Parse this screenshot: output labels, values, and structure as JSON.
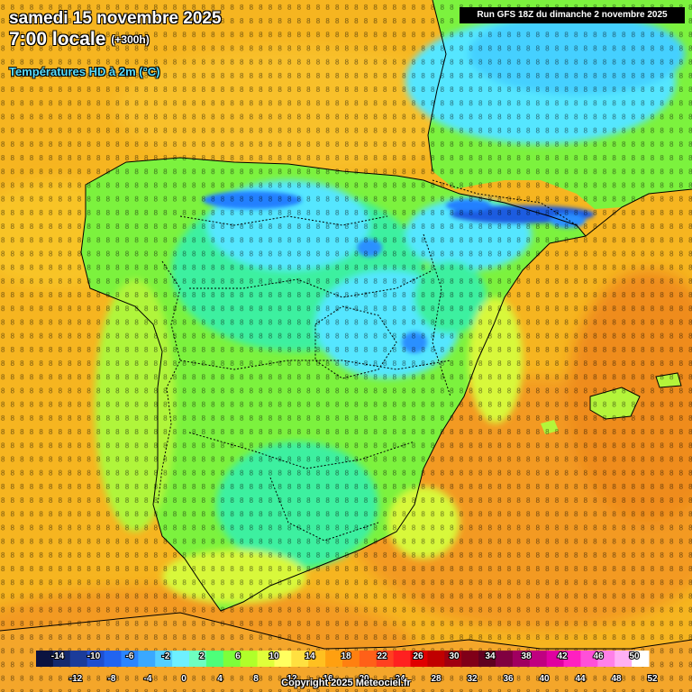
{
  "header": {
    "date_line": "samedi 15 novembre 2025",
    "time_line": "7:00 locale",
    "lead": "(+300h)",
    "variable": "Températures HD à 2m (°C)"
  },
  "run_info": "Run GFS 18Z du dimanche 2 novembre 2025",
  "copyright": "Copyright 2025 Meteociel.fr",
  "legend": {
    "upper_ticks": [
      "-14",
      "-10",
      "-6",
      "-2",
      "2",
      "6",
      "10",
      "14",
      "18",
      "22",
      "26",
      "30",
      "34",
      "38",
      "42",
      "46",
      "50"
    ],
    "lower_ticks": [
      "-12",
      "-8",
      "-4",
      "0",
      "4",
      "8",
      "12",
      "16",
      "20",
      "24",
      "28",
      "32",
      "36",
      "40",
      "44",
      "48",
      "52"
    ],
    "colors": [
      "#0b1340",
      "#152a6e",
      "#1b3c9a",
      "#1f4fd0",
      "#2164f0",
      "#2b85ff",
      "#3aa8ff",
      "#55cfff",
      "#6ef0ff",
      "#6dffc0",
      "#4dff7a",
      "#7dff3a",
      "#b0ff2a",
      "#e0ff3a",
      "#ffff60",
      "#ffe040",
      "#ffc020",
      "#ffa010",
      "#ff8010",
      "#ff6018",
      "#ff4020",
      "#ff2020",
      "#e00000",
      "#c00000",
      "#a00010",
      "#800018",
      "#600020",
      "#800040",
      "#a00060",
      "#c00080",
      "#e000a0",
      "#ff20c0",
      "#ff50d8",
      "#ff80e8",
      "#ffb0f4",
      "#ffffff"
    ]
  },
  "colors": {
    "sea": "#f6b520",
    "warm_sea": "#f39a22",
    "land_mild": "#7cf23e",
    "land_cool": "#3df0a0",
    "land_cold": "#55e6ff",
    "mountain_cold": "#2080ff",
    "coast_warm": "#fcd128",
    "border": "#000000"
  }
}
